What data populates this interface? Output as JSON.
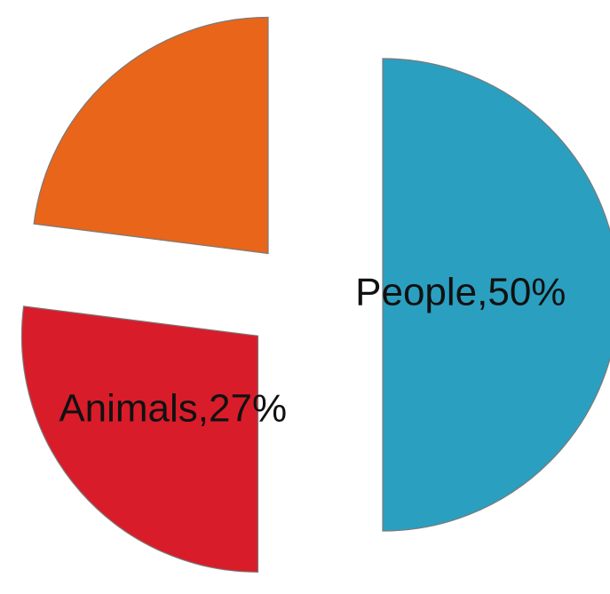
{
  "chart_data": {
    "type": "pie",
    "slices": [
      {
        "label": "People,50%",
        "value": 50,
        "color": "#2b9fc0"
      },
      {
        "label": "Animals,27%",
        "value": 27,
        "color": "#d91c2a"
      },
      {
        "label": "",
        "value": 23,
        "color": "#e8651a"
      }
    ],
    "exploded": true,
    "legend": "none"
  }
}
